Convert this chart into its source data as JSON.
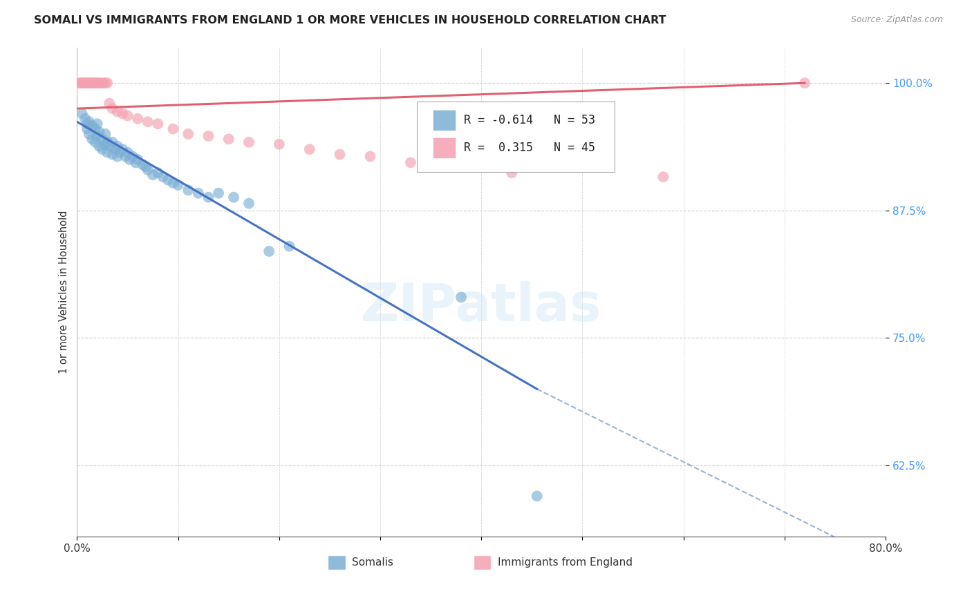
{
  "title": "SOMALI VS IMMIGRANTS FROM ENGLAND 1 OR MORE VEHICLES IN HOUSEHOLD CORRELATION CHART",
  "source": "Source: ZipAtlas.com",
  "ylabel": "1 or more Vehicles in Household",
  "xlim": [
    0.0,
    0.8
  ],
  "ylim": [
    0.555,
    1.035
  ],
  "yticks": [
    0.625,
    0.75,
    0.875,
    1.0
  ],
  "ytick_labels": [
    "62.5%",
    "75.0%",
    "87.5%",
    "100.0%"
  ],
  "xticks": [
    0.0,
    0.1,
    0.2,
    0.3,
    0.4,
    0.5,
    0.6,
    0.7,
    0.8
  ],
  "xtick_labels": [
    "0.0%",
    "",
    "",
    "",
    "",
    "",
    "",
    "",
    "80.0%"
  ],
  "legend_R_somali": "-0.614",
  "legend_N_somali": "53",
  "legend_R_england": "0.315",
  "legend_N_england": "45",
  "somali_color": "#7bafd4",
  "england_color": "#f4a0b0",
  "trendline_somali_color": "#4472c4",
  "trendline_england_color": "#e06070",
  "watermark": "ZIPatlas",
  "somali_scatter": [
    [
      0.005,
      0.97
    ],
    [
      0.008,
      0.965
    ],
    [
      0.01,
      0.96
    ],
    [
      0.01,
      0.955
    ],
    [
      0.012,
      0.962
    ],
    [
      0.012,
      0.95
    ],
    [
      0.015,
      0.958
    ],
    [
      0.015,
      0.945
    ],
    [
      0.018,
      0.955
    ],
    [
      0.018,
      0.942
    ],
    [
      0.02,
      0.96
    ],
    [
      0.02,
      0.948
    ],
    [
      0.022,
      0.952
    ],
    [
      0.022,
      0.938
    ],
    [
      0.025,
      0.945
    ],
    [
      0.025,
      0.935
    ],
    [
      0.028,
      0.95
    ],
    [
      0.028,
      0.94
    ],
    [
      0.03,
      0.942
    ],
    [
      0.03,
      0.932
    ],
    [
      0.032,
      0.938
    ],
    [
      0.035,
      0.942
    ],
    [
      0.035,
      0.93
    ],
    [
      0.038,
      0.935
    ],
    [
      0.04,
      0.938
    ],
    [
      0.04,
      0.928
    ],
    [
      0.042,
      0.932
    ],
    [
      0.045,
      0.935
    ],
    [
      0.048,
      0.928
    ],
    [
      0.05,
      0.932
    ],
    [
      0.052,
      0.925
    ],
    [
      0.055,
      0.928
    ],
    [
      0.058,
      0.922
    ],
    [
      0.06,
      0.925
    ],
    [
      0.065,
      0.92
    ],
    [
      0.068,
      0.918
    ],
    [
      0.07,
      0.915
    ],
    [
      0.075,
      0.91
    ],
    [
      0.08,
      0.912
    ],
    [
      0.085,
      0.908
    ],
    [
      0.09,
      0.905
    ],
    [
      0.095,
      0.902
    ],
    [
      0.1,
      0.9
    ],
    [
      0.11,
      0.895
    ],
    [
      0.12,
      0.892
    ],
    [
      0.13,
      0.888
    ],
    [
      0.14,
      0.892
    ],
    [
      0.155,
      0.888
    ],
    [
      0.17,
      0.882
    ],
    [
      0.19,
      0.835
    ],
    [
      0.21,
      0.84
    ],
    [
      0.38,
      0.79
    ],
    [
      0.455,
      0.595
    ]
  ],
  "england_scatter": [
    [
      0.002,
      1.0
    ],
    [
      0.004,
      1.0
    ],
    [
      0.005,
      1.0
    ],
    [
      0.006,
      1.0
    ],
    [
      0.007,
      1.0
    ],
    [
      0.008,
      1.0
    ],
    [
      0.009,
      1.0
    ],
    [
      0.01,
      1.0
    ],
    [
      0.011,
      1.0
    ],
    [
      0.012,
      1.0
    ],
    [
      0.013,
      1.0
    ],
    [
      0.014,
      1.0
    ],
    [
      0.015,
      1.0
    ],
    [
      0.016,
      1.0
    ],
    [
      0.017,
      1.0
    ],
    [
      0.018,
      1.0
    ],
    [
      0.019,
      1.0
    ],
    [
      0.02,
      1.0
    ],
    [
      0.022,
      1.0
    ],
    [
      0.024,
      1.0
    ],
    [
      0.026,
      1.0
    ],
    [
      0.028,
      1.0
    ],
    [
      0.03,
      1.0
    ],
    [
      0.032,
      0.98
    ],
    [
      0.035,
      0.975
    ],
    [
      0.04,
      0.972
    ],
    [
      0.045,
      0.97
    ],
    [
      0.05,
      0.968
    ],
    [
      0.06,
      0.965
    ],
    [
      0.07,
      0.962
    ],
    [
      0.08,
      0.96
    ],
    [
      0.095,
      0.955
    ],
    [
      0.11,
      0.95
    ],
    [
      0.13,
      0.948
    ],
    [
      0.15,
      0.945
    ],
    [
      0.17,
      0.942
    ],
    [
      0.2,
      0.94
    ],
    [
      0.23,
      0.935
    ],
    [
      0.26,
      0.93
    ],
    [
      0.29,
      0.928
    ],
    [
      0.33,
      0.922
    ],
    [
      0.38,
      0.918
    ],
    [
      0.43,
      0.912
    ],
    [
      0.58,
      0.908
    ],
    [
      0.72,
      1.0
    ]
  ],
  "somali_trendline": [
    [
      0.0,
      0.962
    ],
    [
      0.455,
      0.7
    ]
  ],
  "somali_trendline_dash": [
    [
      0.455,
      0.7
    ],
    [
      0.8,
      0.53
    ]
  ],
  "england_trendline": [
    [
      0.0,
      0.975
    ],
    [
      0.72,
      1.0
    ]
  ]
}
